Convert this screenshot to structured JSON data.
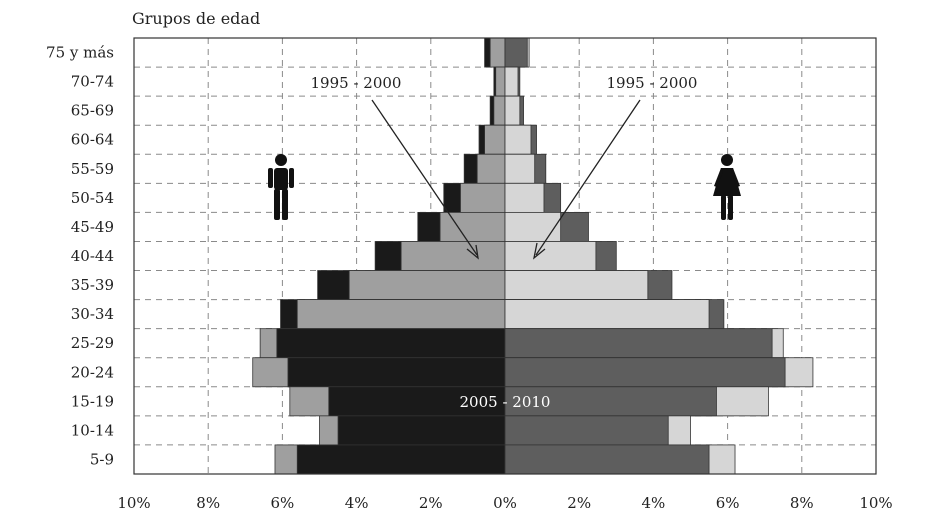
{
  "chart_data": {
    "type": "bar",
    "subtype": "population-pyramid",
    "ylabel": "Grupos de edad",
    "xlim": [
      -10,
      10
    ],
    "x_ticks": [
      -10,
      -8,
      -6,
      -4,
      -2,
      0,
      2,
      4,
      6,
      8,
      10
    ],
    "x_tick_labels": [
      "10%",
      "8%",
      "6%",
      "4%",
      "2%",
      "0%",
      "2%",
      "4%",
      "6%",
      "8%",
      "10%"
    ],
    "grid": true,
    "categories": [
      "75 y más",
      "70-74",
      "65-69",
      "60-64",
      "55-59",
      "50-54",
      "45-49",
      "40-44",
      "35-39",
      "30-34",
      "25-29",
      "20-24",
      "15-19",
      "10-14",
      "5-9"
    ],
    "series": [
      {
        "name": "1995 - 2000",
        "side": "male",
        "values": [
          0.4,
          0.25,
          0.3,
          0.55,
          0.75,
          1.2,
          1.75,
          2.8,
          4.2,
          5.6,
          6.6,
          6.8,
          5.8,
          5.0,
          6.2
        ]
      },
      {
        "name": "2005 - 2010",
        "side": "male",
        "values": [
          0.55,
          0.3,
          0.4,
          0.7,
          1.1,
          1.65,
          2.35,
          3.5,
          5.05,
          6.05,
          6.15,
          5.85,
          4.75,
          4.5,
          5.6
        ]
      },
      {
        "name": "1995 - 2000",
        "side": "female",
        "values": [
          0.65,
          0.35,
          0.4,
          0.7,
          0.8,
          1.05,
          1.5,
          2.45,
          3.85,
          5.5,
          7.5,
          8.3,
          7.1,
          5.0,
          6.2
        ]
      },
      {
        "name": "2005 - 2010",
        "side": "female",
        "values": [
          0.6,
          0.4,
          0.5,
          0.85,
          1.1,
          1.5,
          2.25,
          3.0,
          4.5,
          5.9,
          7.2,
          7.55,
          5.7,
          4.4,
          5.5
        ]
      }
    ],
    "annotations": [
      {
        "text": "1995 - 2000",
        "side": "male"
      },
      {
        "text": "1995 - 2000",
        "side": "female"
      },
      {
        "text": "2005 - 2010",
        "side": "center"
      }
    ],
    "colors": {
      "male_1995": "#9f9f9f",
      "male_2005": "#1a1a1a",
      "female_1995": "#d6d6d6",
      "female_2005": "#5e5e5e",
      "outline": "#333333",
      "grid": "#8a8a8a"
    },
    "icons": [
      "male-figure-icon",
      "female-figure-icon"
    ]
  }
}
